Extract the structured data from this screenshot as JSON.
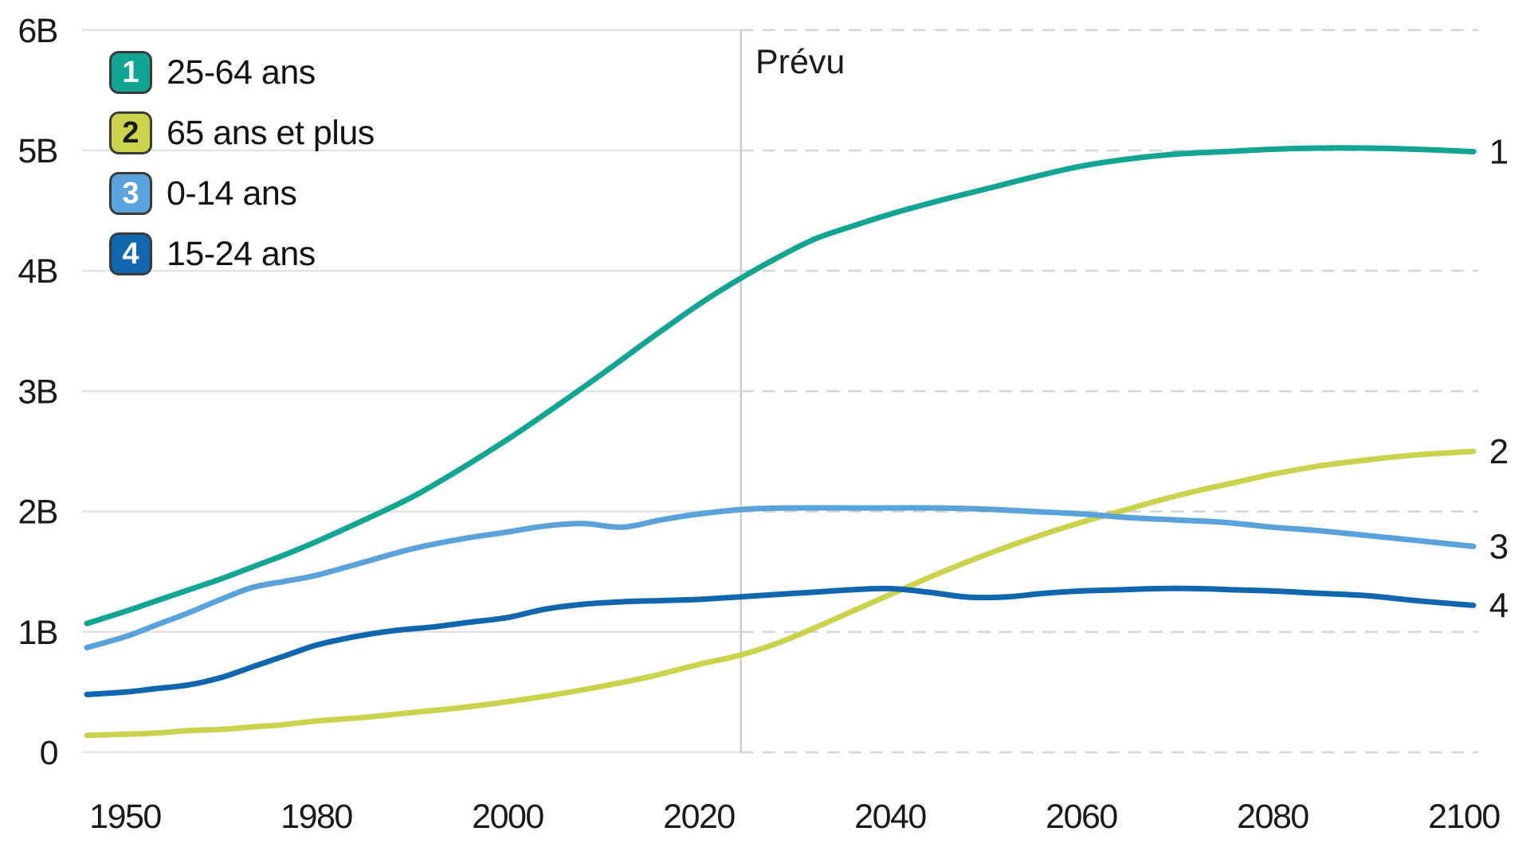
{
  "chart_data": {
    "type": "line",
    "title": "",
    "unit": "B = milliards (billions de personnes)",
    "ylim": [
      0,
      6
    ],
    "grid": "horizontal; solid before forecast divider, dashed after",
    "legend_position": "top-left",
    "x_tick_labels": [
      "1950",
      "1980",
      "2000",
      "2020",
      "2040",
      "2060",
      "2080",
      "2100"
    ],
    "x_tick_years": [
      1950,
      1980,
      2000,
      2020,
      2040,
      2060,
      2080,
      2100
    ],
    "x_axis_note": "ticks are evenly spaced although the first interval (1950-1980) spans 30 years and the rest span 20 years",
    "y_ticks": [
      {
        "value": 0,
        "label": "0"
      },
      {
        "value": 1,
        "label": "1B"
      },
      {
        "value": 2,
        "label": "2B"
      },
      {
        "value": 3,
        "label": "3B"
      },
      {
        "value": 4,
        "label": "4B"
      },
      {
        "value": 5,
        "label": "5B"
      },
      {
        "value": 6,
        "label": "6B"
      }
    ],
    "annotation": {
      "label": "Prévu",
      "divider_year": 2024.4
    },
    "series": [
      {
        "legend_number": "1",
        "name": "25-64 ans",
        "color": "#13a593",
        "number_color": "#ffffff",
        "end_label": "1",
        "points": [
          [
            1944,
            1.07
          ],
          [
            1950,
            1.17
          ],
          [
            1955,
            1.26
          ],
          [
            1960,
            1.35
          ],
          [
            1965,
            1.44
          ],
          [
            1970,
            1.54
          ],
          [
            1975,
            1.64
          ],
          [
            1980,
            1.75
          ],
          [
            1985,
            1.93
          ],
          [
            1990,
            2.12
          ],
          [
            1995,
            2.35
          ],
          [
            2000,
            2.6
          ],
          [
            2005,
            2.87
          ],
          [
            2010,
            3.15
          ],
          [
            2015,
            3.44
          ],
          [
            2020,
            3.72
          ],
          [
            2024,
            3.92
          ],
          [
            2028,
            4.1
          ],
          [
            2032,
            4.26
          ],
          [
            2036,
            4.37
          ],
          [
            2040,
            4.47
          ],
          [
            2045,
            4.58
          ],
          [
            2050,
            4.68
          ],
          [
            2055,
            4.78
          ],
          [
            2060,
            4.87
          ],
          [
            2065,
            4.93
          ],
          [
            2070,
            4.97
          ],
          [
            2075,
            4.99
          ],
          [
            2080,
            5.01
          ],
          [
            2085,
            5.02
          ],
          [
            2090,
            5.02
          ],
          [
            2095,
            5.01
          ],
          [
            2101,
            4.99
          ]
        ]
      },
      {
        "legend_number": "2",
        "name": "65 ans et plus",
        "color": "#cbd34c",
        "number_color": "#1a1a1a",
        "end_label": "2",
        "points": [
          [
            1944,
            0.14
          ],
          [
            1950,
            0.15
          ],
          [
            1955,
            0.16
          ],
          [
            1960,
            0.18
          ],
          [
            1965,
            0.19
          ],
          [
            1970,
            0.21
          ],
          [
            1975,
            0.23
          ],
          [
            1980,
            0.26
          ],
          [
            1985,
            0.29
          ],
          [
            1990,
            0.33
          ],
          [
            1995,
            0.37
          ],
          [
            2000,
            0.42
          ],
          [
            2005,
            0.48
          ],
          [
            2010,
            0.55
          ],
          [
            2015,
            0.63
          ],
          [
            2020,
            0.73
          ],
          [
            2024,
            0.8
          ],
          [
            2028,
            0.9
          ],
          [
            2032,
            1.03
          ],
          [
            2036,
            1.17
          ],
          [
            2040,
            1.31
          ],
          [
            2044,
            1.45
          ],
          [
            2048,
            1.58
          ],
          [
            2052,
            1.7
          ],
          [
            2056,
            1.81
          ],
          [
            2060,
            1.91
          ],
          [
            2064,
            2.0
          ],
          [
            2068,
            2.09
          ],
          [
            2072,
            2.17
          ],
          [
            2076,
            2.24
          ],
          [
            2080,
            2.31
          ],
          [
            2085,
            2.38
          ],
          [
            2090,
            2.43
          ],
          [
            2095,
            2.47
          ],
          [
            2101,
            2.5
          ]
        ]
      },
      {
        "legend_number": "3",
        "name": "0-14 ans",
        "color": "#5aa2db",
        "number_color": "#ffffff",
        "end_label": "3",
        "points": [
          [
            1944,
            0.87
          ],
          [
            1950,
            0.96
          ],
          [
            1955,
            1.06
          ],
          [
            1960,
            1.16
          ],
          [
            1965,
            1.27
          ],
          [
            1970,
            1.37
          ],
          [
            1975,
            1.42
          ],
          [
            1980,
            1.47
          ],
          [
            1985,
            1.58
          ],
          [
            1990,
            1.69
          ],
          [
            1995,
            1.77
          ],
          [
            2000,
            1.83
          ],
          [
            2004,
            1.88
          ],
          [
            2008,
            1.9
          ],
          [
            2012,
            1.87
          ],
          [
            2016,
            1.93
          ],
          [
            2020,
            1.98
          ],
          [
            2025,
            2.02
          ],
          [
            2030,
            2.03
          ],
          [
            2035,
            2.03
          ],
          [
            2040,
            2.03
          ],
          [
            2045,
            2.03
          ],
          [
            2050,
            2.02
          ],
          [
            2055,
            2.0
          ],
          [
            2060,
            1.98
          ],
          [
            2065,
            1.95
          ],
          [
            2070,
            1.93
          ],
          [
            2075,
            1.91
          ],
          [
            2080,
            1.87
          ],
          [
            2085,
            1.84
          ],
          [
            2090,
            1.8
          ],
          [
            2095,
            1.76
          ],
          [
            2101,
            1.71
          ]
        ]
      },
      {
        "legend_number": "4",
        "name": "15-24 ans",
        "color": "#1166b0",
        "number_color": "#ffffff",
        "end_label": "4",
        "points": [
          [
            1944,
            0.48
          ],
          [
            1950,
            0.5
          ],
          [
            1955,
            0.53
          ],
          [
            1960,
            0.56
          ],
          [
            1965,
            0.62
          ],
          [
            1970,
            0.71
          ],
          [
            1975,
            0.8
          ],
          [
            1980,
            0.89
          ],
          [
            1984,
            0.96
          ],
          [
            1988,
            1.01
          ],
          [
            1992,
            1.04
          ],
          [
            1996,
            1.08
          ],
          [
            2000,
            1.12
          ],
          [
            2004,
            1.19
          ],
          [
            2008,
            1.23
          ],
          [
            2012,
            1.25
          ],
          [
            2016,
            1.26
          ],
          [
            2020,
            1.27
          ],
          [
            2024,
            1.29
          ],
          [
            2028,
            1.31
          ],
          [
            2032,
            1.33
          ],
          [
            2036,
            1.35
          ],
          [
            2040,
            1.36
          ],
          [
            2044,
            1.33
          ],
          [
            2048,
            1.29
          ],
          [
            2052,
            1.29
          ],
          [
            2056,
            1.32
          ],
          [
            2060,
            1.34
          ],
          [
            2064,
            1.35
          ],
          [
            2068,
            1.36
          ],
          [
            2072,
            1.36
          ],
          [
            2076,
            1.35
          ],
          [
            2080,
            1.34
          ],
          [
            2085,
            1.32
          ],
          [
            2090,
            1.3
          ],
          [
            2095,
            1.26
          ],
          [
            2101,
            1.22
          ]
        ]
      }
    ],
    "colors": {
      "grid_solid": "#e4e4e4",
      "grid_dashed": "#d6d6d6",
      "divider": "#cccccc",
      "text": "#1a1a1a"
    }
  }
}
